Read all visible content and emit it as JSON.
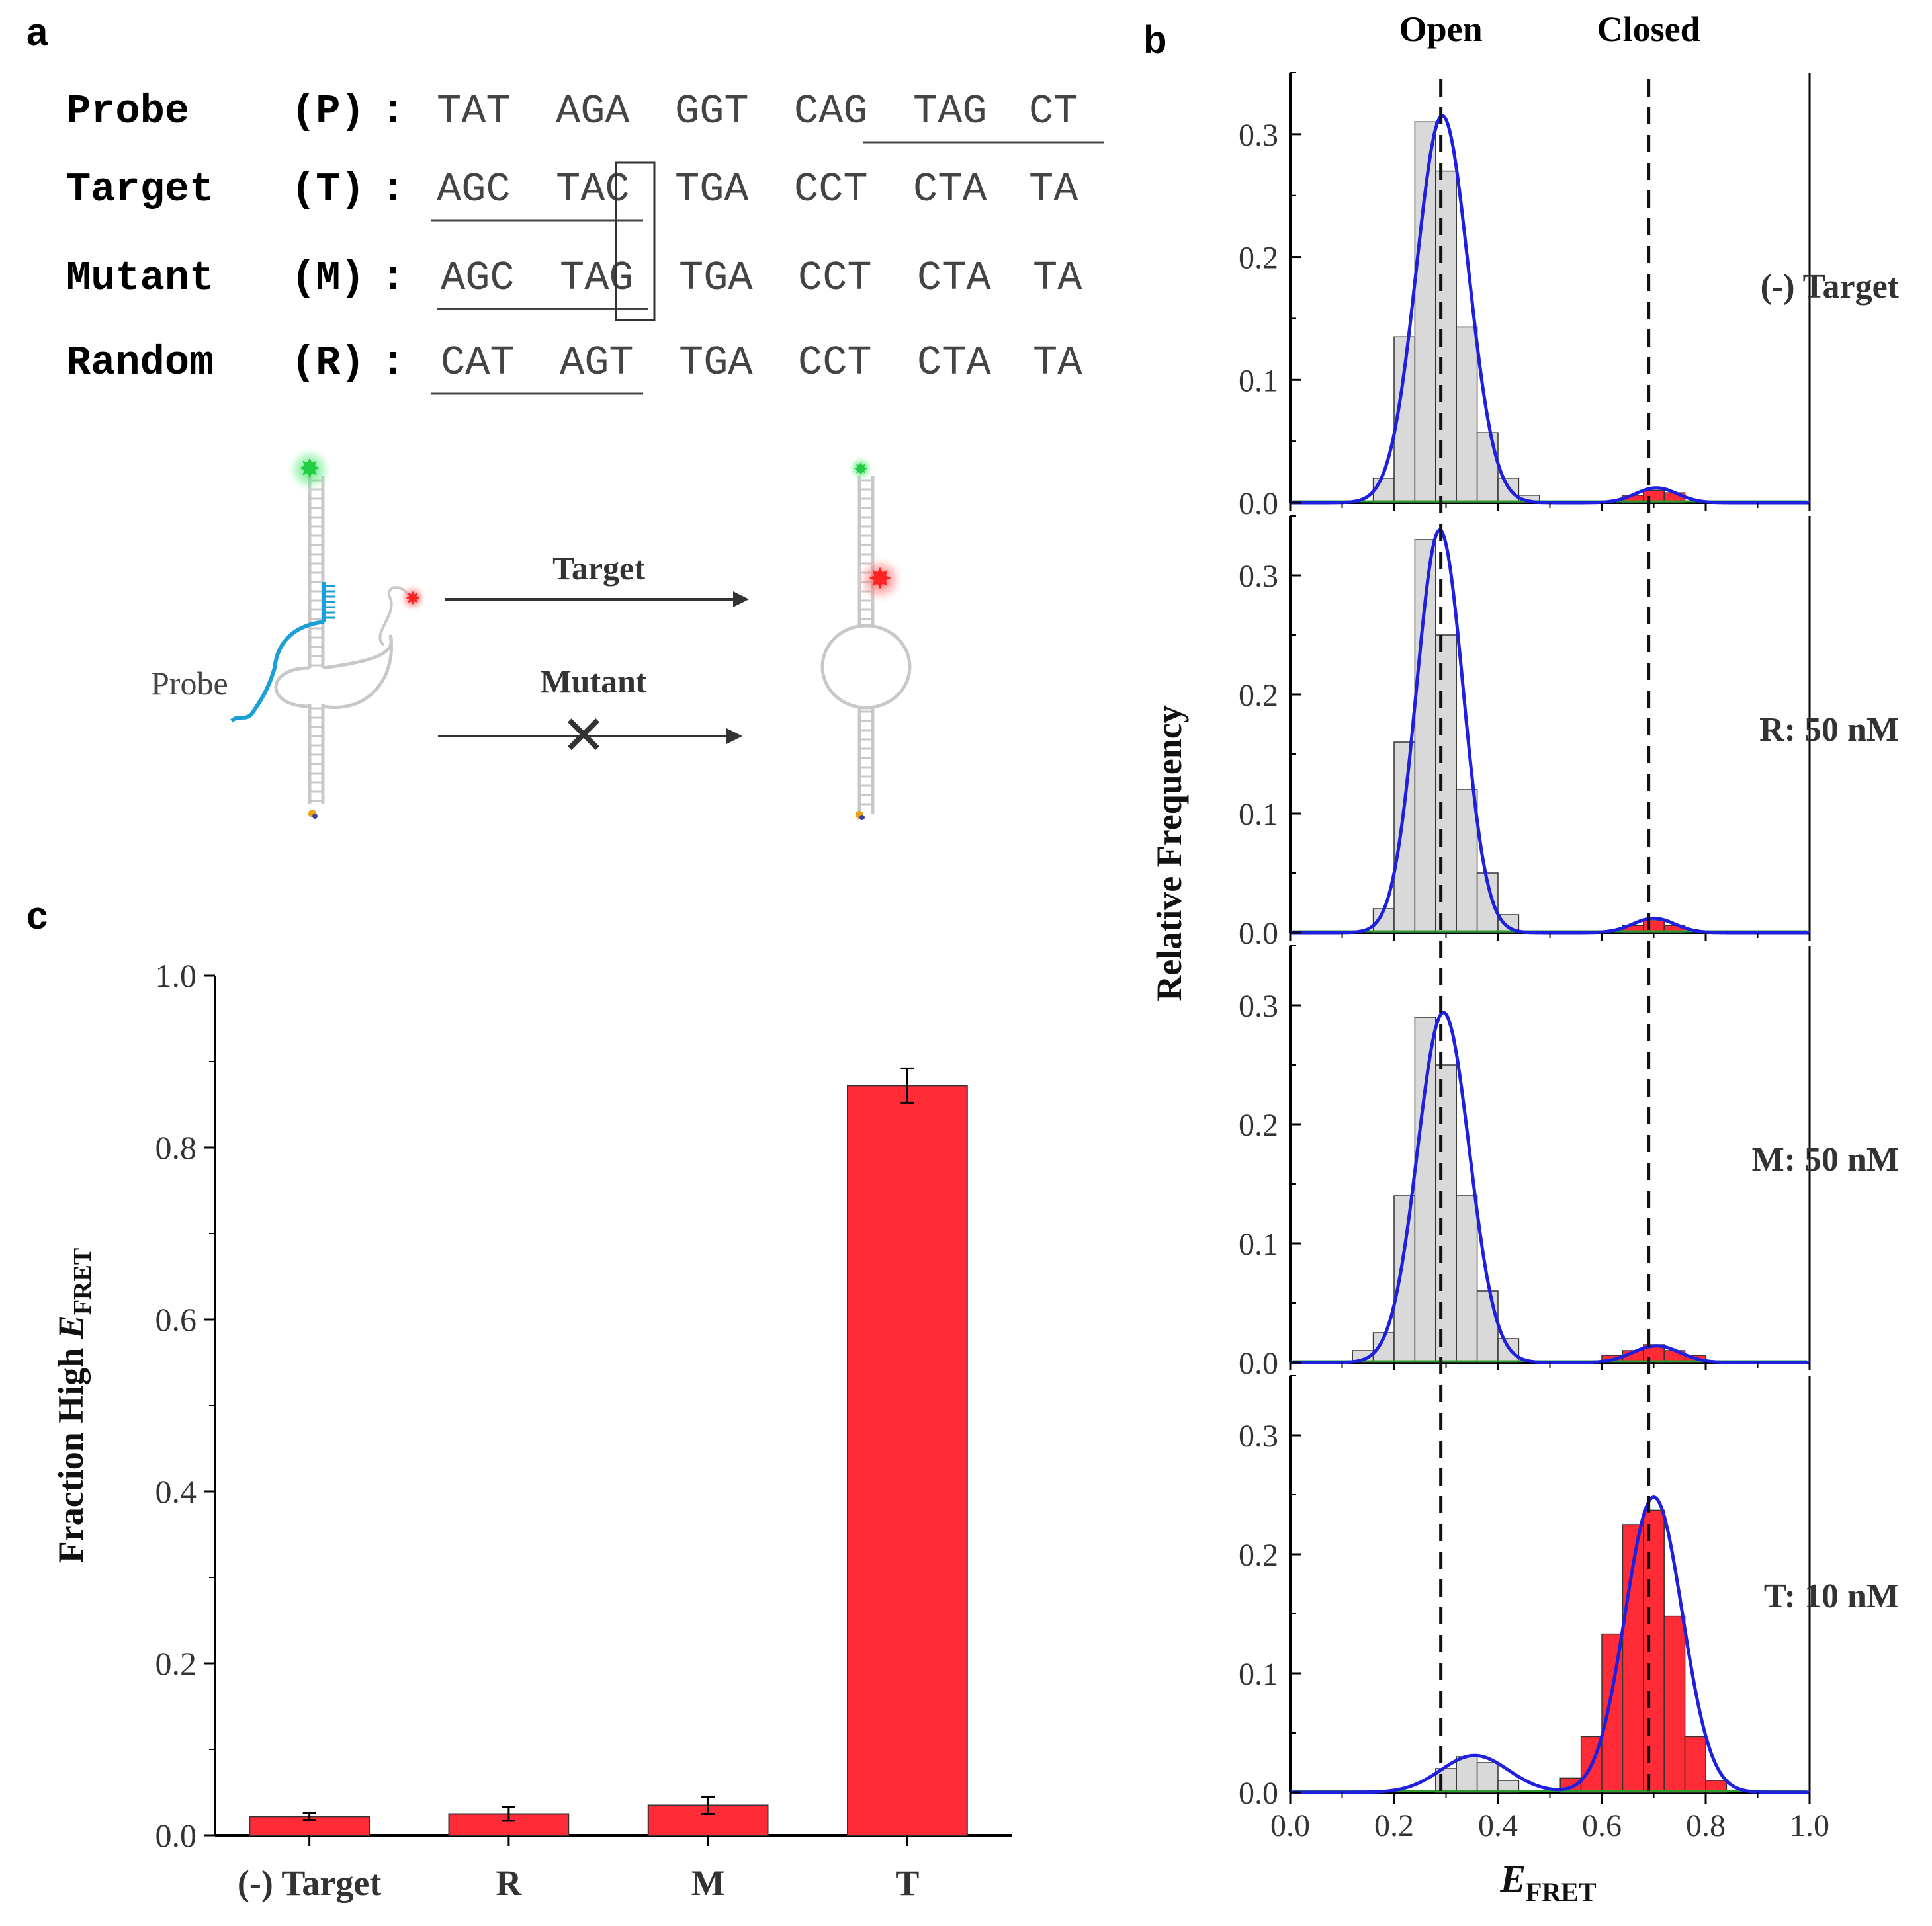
{
  "panel_labels": {
    "a": "a",
    "b": "b",
    "c": "c"
  },
  "colors": {
    "bar_red": "#ff2b36",
    "bar_gray": "#d9d9d9",
    "fit_blue": "#1f1fe0",
    "baseline_green": "#2a9d2a",
    "probe_blue": "#1a9fd6",
    "strand_gray": "#c8c8c8",
    "donor_green": "#22cc44",
    "acceptor_red": "#ff2222"
  },
  "sequences": [
    {
      "name": "Probe",
      "tag": "(P):",
      "groups": [
        "TAT",
        "AGA",
        "GGT",
        "CAG",
        "TAG",
        "CT"
      ]
    },
    {
      "name": "Target",
      "tag": "(T):",
      "groups": [
        "AGC",
        "TAC",
        "TGA",
        "CCT",
        "CTA",
        "TA"
      ]
    },
    {
      "name": "Mutant",
      "tag": "(M):",
      "groups": [
        "AGC",
        "TAG",
        "TGA",
        "CCT",
        "CTA",
        "TA"
      ]
    },
    {
      "name": "Random",
      "tag": "(R):",
      "groups": [
        "CAT",
        "AGT",
        "TGA",
        "CCT",
        "CTA",
        "TA"
      ]
    }
  ],
  "schematic": {
    "probe_label": "Probe",
    "arrow_target_label": "Target",
    "arrow_mutant_label": "Mutant",
    "blocked_mark": "✕"
  },
  "chart_data": [
    {
      "id": "panel-b",
      "type": "bar",
      "subtype": "stacked histograms with Gaussian fits",
      "xlabel": "E",
      "xlabel_sub": "FRET",
      "ylabel": "Relative Frequency",
      "xlim": [
        0.0,
        1.0
      ],
      "ylim": [
        0.0,
        0.35
      ],
      "xticks": [
        "0.0",
        "0.2",
        "0.4",
        "0.6",
        "0.8",
        "1.0"
      ],
      "yticks": [
        "0.0",
        "0.1",
        "0.2",
        "0.3"
      ],
      "reference_lines": [
        {
          "x": 0.29,
          "label": "Open"
        },
        {
          "x": 0.69,
          "label": "Closed"
        }
      ],
      "bin_width": 0.04,
      "panels": [
        {
          "label": "(-) Target",
          "bins": [
            {
              "x": 0.14,
              "y": 0.0
            },
            {
              "x": 0.18,
              "y": 0.02
            },
            {
              "x": 0.22,
              "y": 0.135
            },
            {
              "x": 0.26,
              "y": 0.31
            },
            {
              "x": 0.3,
              "y": 0.27
            },
            {
              "x": 0.34,
              "y": 0.143
            },
            {
              "x": 0.38,
              "y": 0.057
            },
            {
              "x": 0.42,
              "y": 0.02
            },
            {
              "x": 0.46,
              "y": 0.006
            },
            {
              "x": 0.66,
              "y": 0.006
            },
            {
              "x": 0.7,
              "y": 0.01
            },
            {
              "x": 0.74,
              "y": 0.008
            }
          ],
          "fit": [
            {
              "mu": 0.293,
              "sigma": 0.05,
              "amp": 0.315
            },
            {
              "mu": 0.705,
              "sigma": 0.04,
              "amp": 0.012
            }
          ]
        },
        {
          "label": "R: 50 nM",
          "bins": [
            {
              "x": 0.18,
              "y": 0.02
            },
            {
              "x": 0.22,
              "y": 0.16
            },
            {
              "x": 0.26,
              "y": 0.33
            },
            {
              "x": 0.3,
              "y": 0.25
            },
            {
              "x": 0.34,
              "y": 0.12
            },
            {
              "x": 0.38,
              "y": 0.05
            },
            {
              "x": 0.42,
              "y": 0.015
            },
            {
              "x": 0.66,
              "y": 0.006
            },
            {
              "x": 0.7,
              "y": 0.01
            },
            {
              "x": 0.74,
              "y": 0.006
            }
          ],
          "fit": [
            {
              "mu": 0.288,
              "sigma": 0.045,
              "amp": 0.338
            },
            {
              "mu": 0.7,
              "sigma": 0.04,
              "amp": 0.012
            }
          ]
        },
        {
          "label": "M: 50 nM",
          "bins": [
            {
              "x": 0.14,
              "y": 0.01
            },
            {
              "x": 0.18,
              "y": 0.025
            },
            {
              "x": 0.22,
              "y": 0.14
            },
            {
              "x": 0.26,
              "y": 0.29
            },
            {
              "x": 0.3,
              "y": 0.25
            },
            {
              "x": 0.34,
              "y": 0.14
            },
            {
              "x": 0.38,
              "y": 0.06
            },
            {
              "x": 0.42,
              "y": 0.02
            },
            {
              "x": 0.62,
              "y": 0.006
            },
            {
              "x": 0.66,
              "y": 0.01
            },
            {
              "x": 0.7,
              "y": 0.015
            },
            {
              "x": 0.74,
              "y": 0.01
            },
            {
              "x": 0.78,
              "y": 0.006
            }
          ],
          "fit": [
            {
              "mu": 0.295,
              "sigma": 0.05,
              "amp": 0.294
            },
            {
              "mu": 0.705,
              "sigma": 0.045,
              "amp": 0.014
            }
          ]
        },
        {
          "label": "T: 10 nM",
          "bins": [
            {
              "x": 0.3,
              "y": 0.02
            },
            {
              "x": 0.34,
              "y": 0.03
            },
            {
              "x": 0.38,
              "y": 0.025
            },
            {
              "x": 0.42,
              "y": 0.01
            },
            {
              "x": 0.54,
              "y": 0.012
            },
            {
              "x": 0.58,
              "y": 0.047
            },
            {
              "x": 0.62,
              "y": 0.133
            },
            {
              "x": 0.66,
              "y": 0.225
            },
            {
              "x": 0.7,
              "y": 0.237
            },
            {
              "x": 0.74,
              "y": 0.148
            },
            {
              "x": 0.78,
              "y": 0.047
            },
            {
              "x": 0.82,
              "y": 0.01
            }
          ],
          "fit": [
            {
              "mu": 0.355,
              "sigma": 0.065,
              "amp": 0.031
            },
            {
              "mu": 0.7,
              "sigma": 0.055,
              "amp": 0.248
            }
          ]
        }
      ]
    },
    {
      "id": "panel-c",
      "type": "bar",
      "categories": [
        "(-) Target",
        "R",
        "M",
        "T"
      ],
      "values": [
        0.022,
        0.025,
        0.035,
        0.872
      ],
      "errors": [
        0.004,
        0.008,
        0.01,
        0.02
      ],
      "ylabel": "Fraction High E",
      "ylabel_sub": "FRET",
      "ylim": [
        0.0,
        1.0
      ],
      "yticks": [
        "0.0",
        "0.2",
        "0.4",
        "0.6",
        "0.8",
        "1.0"
      ]
    }
  ]
}
